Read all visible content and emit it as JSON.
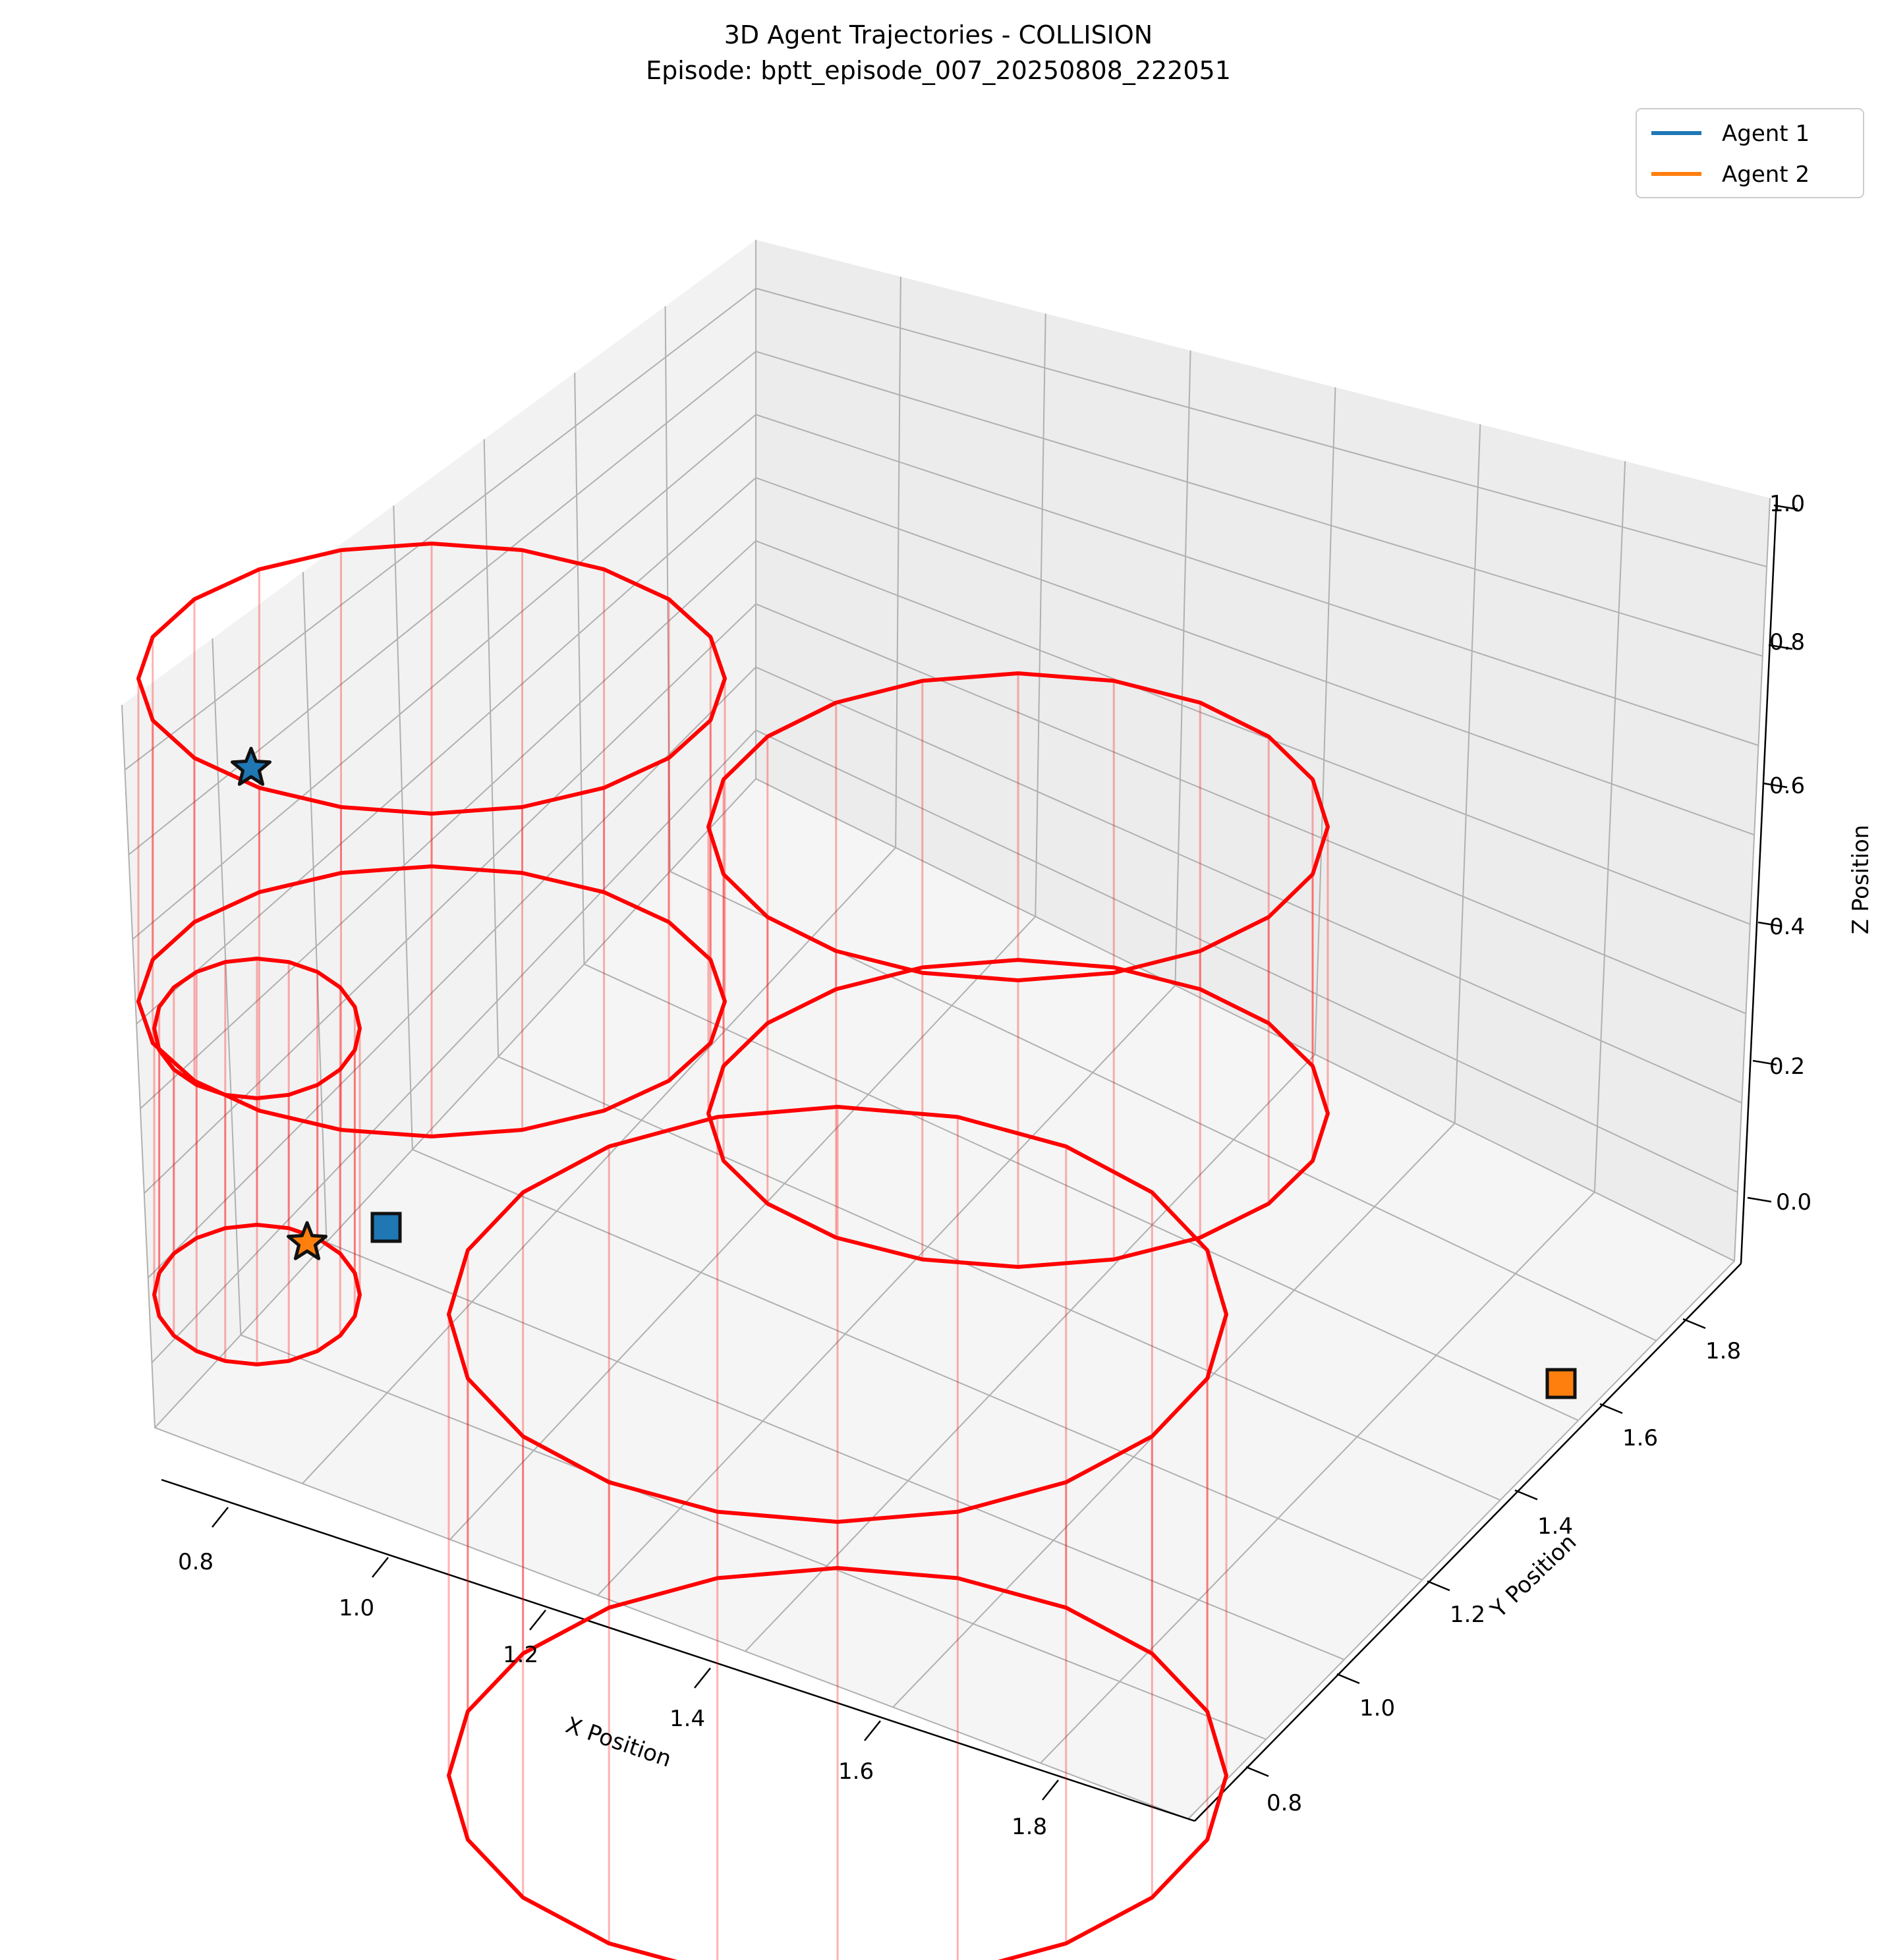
{
  "chart_data": {
    "type": "line",
    "title": "3D Agent Trajectories - COLLISION",
    "subtitle": "Episode: bptt_episode_007_20250808_222051",
    "xlabel": "X Position",
    "ylabel": "Y Position",
    "zlabel": "Z Position",
    "x_ticks": [
      "0.8",
      "1.0",
      "1.2",
      "1.4",
      "1.6",
      "1.8"
    ],
    "y_ticks": [
      "0.8",
      "1.0",
      "1.2",
      "1.4",
      "1.6",
      "1.8"
    ],
    "z_ticks": [
      "0.0",
      "0.2",
      "0.4",
      "0.6",
      "0.8",
      "1.0"
    ],
    "grid": true,
    "legend_position": "top-right",
    "series": [
      {
        "name": "Agent 1",
        "color": "#1f77b4"
      },
      {
        "name": "Agent 2",
        "color": "#ff7f0e"
      }
    ],
    "obstacle_color": "#ff0000"
  }
}
